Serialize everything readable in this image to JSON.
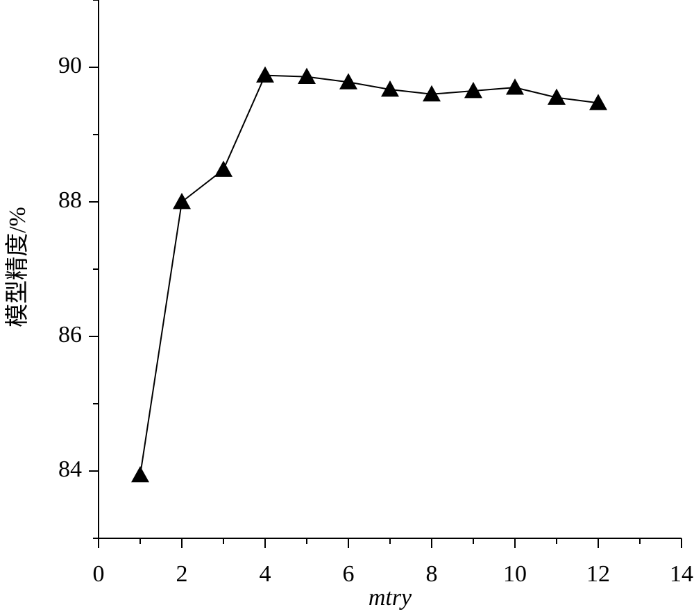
{
  "chart_data": {
    "type": "line",
    "x_label": "mtry",
    "y_label": "模型精度/%",
    "x": [
      1,
      2,
      3,
      4,
      5,
      6,
      7,
      8,
      9,
      10,
      11,
      12
    ],
    "series": [
      {
        "name": "模型精度",
        "color": "#000000",
        "values": [
          83.94,
          88.0,
          88.48,
          89.88,
          89.86,
          89.78,
          89.67,
          89.6,
          89.65,
          89.7,
          89.55,
          89.47
        ]
      }
    ],
    "marker": "triangle",
    "xlim": [
      0,
      14
    ],
    "xticks": [
      0,
      2,
      4,
      6,
      8,
      10,
      12,
      14
    ],
    "xminorticks": [
      1,
      3,
      5,
      7,
      9,
      11,
      13
    ],
    "ylim": [
      83,
      91
    ],
    "yticks": [
      84,
      86,
      88,
      90
    ],
    "yminorticks": [
      83,
      85,
      87,
      89,
      91
    ],
    "grid": false
  }
}
